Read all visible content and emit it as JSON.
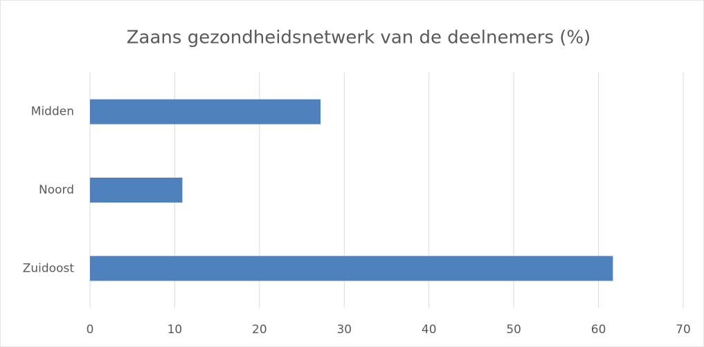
{
  "chart_data": {
    "type": "bar",
    "orientation": "horizontal",
    "title": "Zaans gezondheidsnetwerk van de deelnemers  (%)",
    "categories": [
      "Midden",
      "Noord",
      "Zuidoost"
    ],
    "values": [
      27.2,
      10.9,
      61.7
    ],
    "color": "#4f81bd",
    "xlim": [
      0,
      70
    ],
    "xticks": [
      0,
      10,
      20,
      30,
      40,
      50,
      60,
      70
    ],
    "grid": true
  }
}
